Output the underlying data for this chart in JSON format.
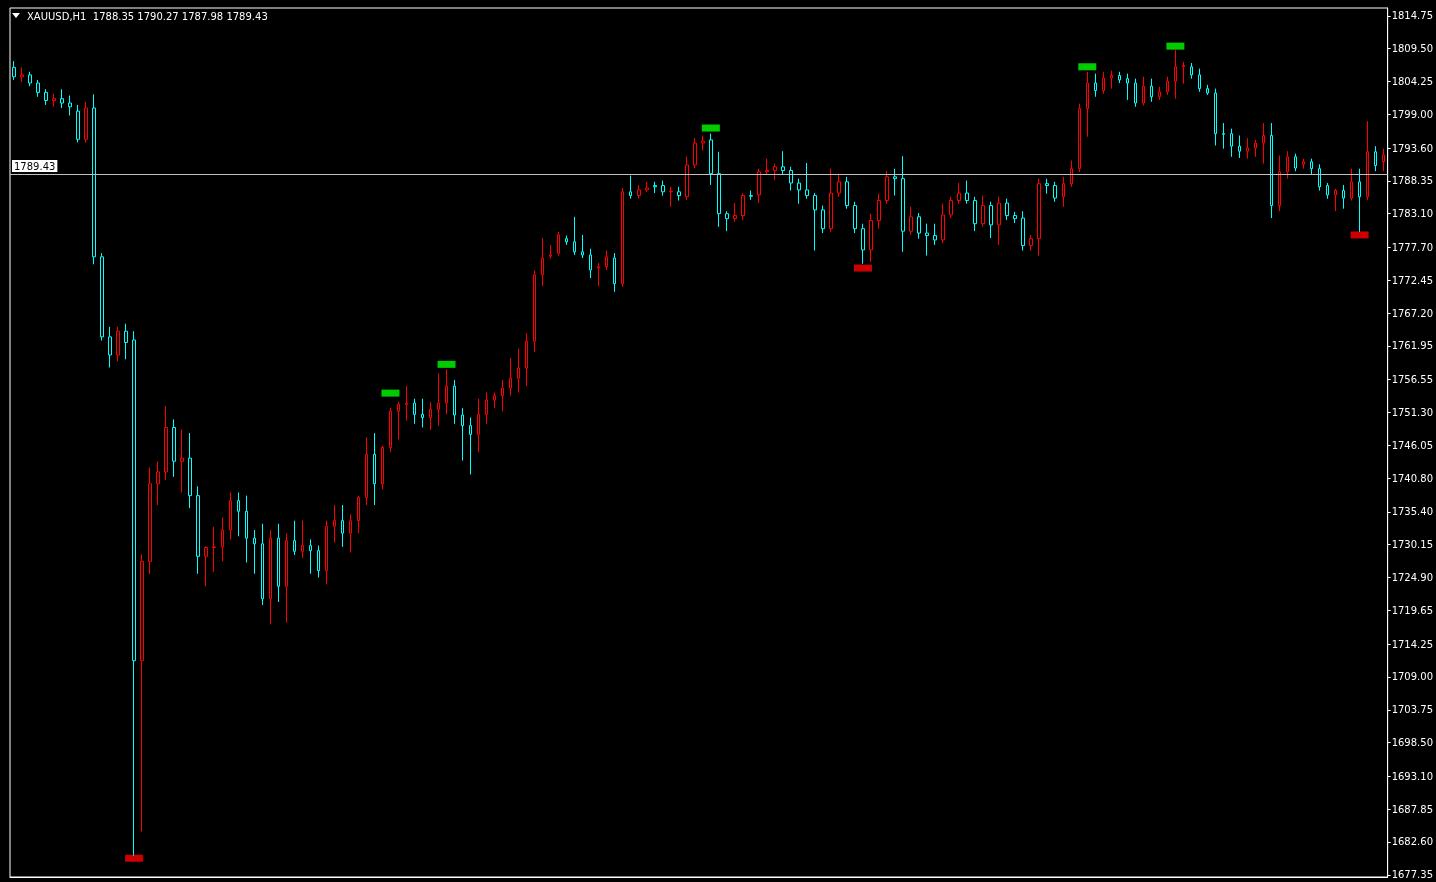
{
  "chart_data": {
    "type": "candlestick",
    "title": "XAUUSD,H1  1788.35 1790.27 1787.98 1789.43",
    "categories": [
      null,
      null,
      null,
      null,
      null,
      null,
      null,
      null,
      null,
      null,
      null,
      null,
      null,
      null,
      null,
      null,
      null,
      null,
      null,
      null,
      null,
      null,
      null,
      null,
      null,
      null,
      null,
      null,
      null,
      null,
      null,
      null,
      null,
      null,
      null,
      null,
      null,
      null,
      null,
      null,
      null,
      null,
      null,
      null,
      null,
      null,
      null,
      null,
      null,
      null,
      null,
      null,
      null,
      null,
      null,
      null,
      null,
      null,
      null,
      null,
      null,
      null,
      null,
      null,
      null,
      null,
      null,
      null,
      null,
      null,
      null,
      null,
      null,
      null,
      null,
      null,
      null,
      null,
      null,
      null,
      null,
      null,
      null,
      null,
      null,
      null,
      null,
      null,
      null,
      null,
      null,
      null,
      null,
      null,
      null,
      null,
      null,
      null,
      null,
      null,
      null,
      null,
      null,
      null,
      null,
      null,
      null,
      null,
      null,
      null,
      null,
      null,
      null,
      null,
      null,
      null,
      null,
      null,
      null,
      null,
      null,
      null,
      null,
      null,
      null,
      null,
      null,
      null,
      null,
      null,
      null,
      null,
      null,
      null,
      null,
      null,
      null,
      null,
      null,
      null,
      null,
      null,
      null,
      null,
      null,
      null,
      null,
      null,
      null,
      null,
      null,
      null,
      null,
      null,
      null,
      null,
      null,
      null,
      null,
      null,
      null,
      null,
      null,
      null,
      null,
      null,
      null,
      null,
      null,
      null,
      null,
      null
    ],
    "ohlc": [
      [
        1806.5,
        1807.5,
        1804.5,
        1805.0
      ],
      [
        1805.0,
        1806.5,
        1804.2,
        1805.3
      ],
      [
        1805.3,
        1805.8,
        1803.5,
        1804.0
      ],
      [
        1804.0,
        1804.5,
        1801.8,
        1802.5
      ],
      [
        1802.5,
        1803.0,
        1800.5,
        1801.2
      ],
      [
        1801.2,
        1802.3,
        1800.2,
        1801.5
      ],
      [
        1801.5,
        1803.0,
        1800.0,
        1800.8
      ],
      [
        1800.8,
        1802.0,
        1798.8,
        1800.2
      ],
      [
        1799.5,
        1800.5,
        1794.5,
        1795.0
      ],
      [
        1795.0,
        1801.0,
        1794.5,
        1800.0
      ],
      [
        1800.0,
        1802.2,
        1775.0,
        1776.2
      ],
      [
        1776.2,
        1776.8,
        1762.8,
        1763.4
      ],
      [
        1763.4,
        1765.0,
        1758.5,
        1760.5
      ],
      [
        1760.5,
        1765.0,
        1759.5,
        1764.3
      ],
      [
        1764.3,
        1765.5,
        1759.8,
        1762.5
      ],
      [
        1762.9,
        1764.3,
        1680.4,
        1711.6
      ],
      [
        1711.6,
        1728.6,
        1684.3,
        1727.5
      ],
      [
        1727.5,
        1742.5,
        1725.5,
        1739.9
      ],
      [
        1739.9,
        1743.5,
        1736.5,
        1741.8
      ],
      [
        1741.8,
        1752.3,
        1740.5,
        1748.9
      ],
      [
        1748.9,
        1750.2,
        1741.0,
        1743.5
      ],
      [
        1743.5,
        1748.6,
        1738.5,
        1744.0
      ],
      [
        1744.0,
        1748.0,
        1736.0,
        1738.0
      ],
      [
        1738.0,
        1739.5,
        1725.5,
        1728.3
      ],
      [
        1728.3,
        1729.9,
        1723.5,
        1729.7
      ],
      [
        1729.7,
        1733.0,
        1725.8,
        1729.8
      ],
      [
        1729.8,
        1734.5,
        1727.5,
        1732.5
      ],
      [
        1732.5,
        1738.5,
        1731.0,
        1737.2
      ],
      [
        1737.2,
        1738.5,
        1731.5,
        1735.5
      ],
      [
        1735.5,
        1738.0,
        1727.3,
        1731.2
      ],
      [
        1731.2,
        1732.5,
        1725.5,
        1730.3
      ],
      [
        1730.3,
        1733.5,
        1720.5,
        1721.5
      ],
      [
        1721.5,
        1732.5,
        1717.4,
        1731.2
      ],
      [
        1731.2,
        1733.5,
        1721.0,
        1723.5
      ],
      [
        1723.5,
        1732.0,
        1717.7,
        1730.8
      ],
      [
        1730.8,
        1734.0,
        1728.5,
        1729.1
      ],
      [
        1729.1,
        1734.0,
        1728.0,
        1730.0
      ],
      [
        1730.0,
        1731.0,
        1725.5,
        1729.2
      ],
      [
        1729.2,
        1730.0,
        1724.9,
        1726.0
      ],
      [
        1726.0,
        1734.0,
        1723.8,
        1733.1
      ],
      [
        1733.1,
        1736.5,
        1730.5,
        1734.0
      ],
      [
        1734.0,
        1736.5,
        1729.8,
        1732.0
      ],
      [
        1732.0,
        1735.0,
        1728.9,
        1734.0
      ],
      [
        1734.0,
        1738.0,
        1732.0,
        1737.7
      ],
      [
        1737.7,
        1747.3,
        1736.5,
        1744.6
      ],
      [
        1744.6,
        1748.0,
        1736.5,
        1739.9
      ],
      [
        1739.9,
        1746.0,
        1739.0,
        1745.7
      ],
      [
        1745.7,
        1752.0,
        1745.0,
        1751.5
      ],
      [
        1751.5,
        1753.0,
        1747.0,
        1752.6
      ],
      [
        1752.6,
        1755.5,
        1750.0,
        1752.8
      ],
      [
        1752.8,
        1753.5,
        1749.5,
        1751.0
      ],
      [
        1751.0,
        1753.5,
        1748.9,
        1750.5
      ],
      [
        1750.5,
        1753.0,
        1748.5,
        1751.8
      ],
      [
        1751.8,
        1757.6,
        1749.2,
        1752.8
      ],
      [
        1752.8,
        1758.2,
        1751.0,
        1755.5
      ],
      [
        1755.5,
        1756.5,
        1749.5,
        1750.9
      ],
      [
        1750.9,
        1752.0,
        1743.6,
        1749.2
      ],
      [
        1749.2,
        1750.5,
        1741.4,
        1747.8
      ],
      [
        1747.8,
        1753.5,
        1745.0,
        1751.0
      ],
      [
        1751.0,
        1754.5,
        1749.5,
        1753.3
      ],
      [
        1753.3,
        1754.5,
        1752.0,
        1754.0
      ],
      [
        1754.0,
        1756.5,
        1751.5,
        1755.2
      ],
      [
        1755.2,
        1760.0,
        1754.0,
        1756.8
      ],
      [
        1756.8,
        1761.5,
        1754.5,
        1758.4
      ],
      [
        1758.4,
        1764.0,
        1755.5,
        1762.7
      ],
      [
        1762.7,
        1774.0,
        1761.0,
        1773.3
      ],
      [
        1773.3,
        1779.2,
        1771.5,
        1776.0
      ],
      [
        1776.3,
        1778.1,
        1775.9,
        1776.5
      ],
      [
        1776.8,
        1780.2,
        1776.4,
        1779.7
      ],
      [
        1779.1,
        1779.6,
        1778.1,
        1778.6
      ],
      [
        1778.6,
        1782.6,
        1776.5,
        1777.0
      ],
      [
        1777.0,
        1779.7,
        1776.0,
        1776.5
      ],
      [
        1776.5,
        1777.5,
        1772.8,
        1774.1
      ],
      [
        1774.4,
        1775.2,
        1771.5,
        1774.6
      ],
      [
        1774.6,
        1777.2,
        1774.1,
        1776.2
      ],
      [
        1776.0,
        1776.8,
        1770.6,
        1771.9
      ],
      [
        1771.9,
        1787.2,
        1771.4,
        1786.6
      ],
      [
        1786.6,
        1789.2,
        1785.5,
        1786.0
      ],
      [
        1786.0,
        1787.7,
        1785.5,
        1786.9
      ],
      [
        1786.9,
        1788.2,
        1786.6,
        1787.2
      ],
      [
        1787.6,
        1788.2,
        1786.4,
        1787.4
      ],
      [
        1787.6,
        1788.4,
        1786.0,
        1786.6
      ],
      [
        1786.6,
        1787.4,
        1784.2,
        1786.7
      ],
      [
        1786.6,
        1787.4,
        1785.2,
        1786.0
      ],
      [
        1785.8,
        1792.2,
        1785.3,
        1790.9
      ],
      [
        1790.9,
        1795.2,
        1790.4,
        1794.4
      ],
      [
        1794.4,
        1795.6,
        1793.2,
        1794.7
      ],
      [
        1794.9,
        1795.9,
        1787.7,
        1789.5
      ],
      [
        1789.5,
        1793.0,
        1781.0,
        1783.1
      ],
      [
        1783.1,
        1783.5,
        1780.3,
        1782.3
      ],
      [
        1782.3,
        1784.8,
        1781.8,
        1782.8
      ],
      [
        1782.8,
        1786.4,
        1782.1,
        1786.0
      ],
      [
        1786.0,
        1786.8,
        1785.3,
        1785.9
      ],
      [
        1786.1,
        1790.3,
        1784.8,
        1789.8
      ],
      [
        1789.8,
        1791.9,
        1789.3,
        1790.0
      ],
      [
        1790.0,
        1791.1,
        1788.5,
        1790.6
      ],
      [
        1790.6,
        1793.1,
        1789.3,
        1790.0
      ],
      [
        1790.0,
        1790.6,
        1786.8,
        1788.0
      ],
      [
        1788.0,
        1788.7,
        1784.7,
        1786.9
      ],
      [
        1786.9,
        1791.2,
        1785.5,
        1786.0
      ],
      [
        1786.0,
        1786.4,
        1777.2,
        1783.7
      ],
      [
        1783.7,
        1784.4,
        1780.0,
        1780.7
      ],
      [
        1780.7,
        1790.3,
        1780.2,
        1786.4
      ],
      [
        1786.4,
        1789.5,
        1785.8,
        1788.2
      ],
      [
        1788.2,
        1789.0,
        1783.9,
        1784.4
      ],
      [
        1784.4,
        1785.0,
        1780.0,
        1780.7
      ],
      [
        1780.7,
        1781.5,
        1775.1,
        1777.3
      ],
      [
        1777.3,
        1783.1,
        1775.4,
        1782.0
      ],
      [
        1782.0,
        1786.3,
        1780.7,
        1785.2
      ],
      [
        1785.2,
        1789.9,
        1784.7,
        1789.0
      ],
      [
        1789.0,
        1790.3,
        1786.0,
        1788.7
      ],
      [
        1788.7,
        1792.3,
        1777.0,
        1780.3
      ],
      [
        1780.3,
        1784.2,
        1779.7,
        1782.6
      ],
      [
        1782.6,
        1783.2,
        1779.1,
        1780.0
      ],
      [
        1780.0,
        1781.5,
        1776.4,
        1779.6
      ],
      [
        1779.6,
        1781.5,
        1778.1,
        1778.9
      ],
      [
        1778.9,
        1784.7,
        1778.4,
        1782.9
      ],
      [
        1782.9,
        1785.8,
        1782.4,
        1785.2
      ],
      [
        1785.2,
        1788.0,
        1784.7,
        1786.4
      ],
      [
        1786.4,
        1788.4,
        1784.7,
        1785.2
      ],
      [
        1785.2,
        1785.8,
        1780.3,
        1781.5
      ],
      [
        1781.5,
        1786.0,
        1781.0,
        1784.4
      ],
      [
        1784.4,
        1785.0,
        1779.2,
        1781.3
      ],
      [
        1781.3,
        1785.8,
        1778.1,
        1784.8
      ],
      [
        1784.8,
        1785.5,
        1782.1,
        1782.8
      ],
      [
        1782.8,
        1783.4,
        1781.6,
        1782.3
      ],
      [
        1782.4,
        1783.5,
        1777.2,
        1778.0
      ],
      [
        1778.0,
        1779.7,
        1777.2,
        1779.1
      ],
      [
        1779.1,
        1788.7,
        1776.4,
        1787.9
      ],
      [
        1787.9,
        1788.7,
        1786.3,
        1787.6
      ],
      [
        1787.6,
        1788.2,
        1785.0,
        1785.6
      ],
      [
        1785.8,
        1789.0,
        1784.2,
        1787.9
      ],
      [
        1787.9,
        1791.6,
        1787.4,
        1790.3
      ],
      [
        1790.3,
        1800.7,
        1789.8,
        1799.9
      ],
      [
        1799.9,
        1805.8,
        1795.4,
        1804.0
      ],
      [
        1804.0,
        1805.5,
        1801.8,
        1802.8
      ],
      [
        1802.8,
        1805.8,
        1802.3,
        1804.8
      ],
      [
        1804.8,
        1806.0,
        1803.1,
        1805.2
      ],
      [
        1805.2,
        1805.8,
        1804.0,
        1804.5
      ],
      [
        1804.7,
        1805.5,
        1801.3,
        1804.0
      ],
      [
        1804.0,
        1804.7,
        1800.2,
        1800.8
      ],
      [
        1800.8,
        1805.0,
        1800.4,
        1803.5
      ],
      [
        1803.5,
        1804.7,
        1801.0,
        1801.8
      ],
      [
        1801.8,
        1803.4,
        1801.3,
        1802.6
      ],
      [
        1802.6,
        1805.0,
        1802.1,
        1804.3
      ],
      [
        1804.3,
        1809.3,
        1801.5,
        1806.6
      ],
      [
        1806.6,
        1807.4,
        1803.9,
        1806.8
      ],
      [
        1806.6,
        1807.2,
        1804.7,
        1805.3
      ],
      [
        1805.3,
        1806.3,
        1802.6,
        1803.1
      ],
      [
        1803.1,
        1803.7,
        1802.1,
        1802.4
      ],
      [
        1802.4,
        1803.1,
        1794.0,
        1795.9
      ],
      [
        1795.9,
        1797.6,
        1793.5,
        1795.8
      ],
      [
        1795.9,
        1796.7,
        1792.2,
        1793.9
      ],
      [
        1793.9,
        1795.6,
        1792.0,
        1793.1
      ],
      [
        1793.1,
        1795.2,
        1791.9,
        1793.6
      ],
      [
        1793.6,
        1794.9,
        1792.2,
        1794.4
      ],
      [
        1794.4,
        1797.6,
        1791.1,
        1795.6
      ],
      [
        1795.6,
        1797.6,
        1782.4,
        1784.4
      ],
      [
        1784.4,
        1792.4,
        1783.5,
        1789.8
      ],
      [
        1789.8,
        1793.1,
        1788.7,
        1792.2
      ],
      [
        1792.2,
        1792.7,
        1789.9,
        1790.4
      ],
      [
        1791.0,
        1791.9,
        1790.3,
        1791.4
      ],
      [
        1791.4,
        1791.9,
        1789.3,
        1790.3
      ],
      [
        1790.3,
        1791.0,
        1786.8,
        1787.4
      ],
      [
        1787.6,
        1788.0,
        1785.5,
        1786.1
      ],
      [
        1786.1,
        1787.1,
        1783.5,
        1786.8
      ],
      [
        1786.8,
        1787.7,
        1783.9,
        1785.6
      ],
      [
        1785.6,
        1790.3,
        1785.2,
        1788.2
      ],
      [
        1788.2,
        1790.3,
        1780.2,
        1785.8
      ],
      [
        1785.8,
        1797.9,
        1785.3,
        1793.0
      ],
      [
        1793.0,
        1793.9,
        1789.9,
        1790.8
      ],
      [
        1791.4,
        1793.5,
        1789.9,
        1792.5
      ]
    ],
    "colors": [
      "#00ffff",
      "#ff0000",
      "#00ffff",
      "#00ffff",
      "#00ffff",
      "#ff0000",
      "#00ffff",
      "#00ffff",
      "#00ffff",
      "#ff0000",
      "#00ffff",
      "#00ffff",
      "#00ffff",
      "#ff0000",
      "#00ffff",
      "#00ffff",
      "#ff0000",
      "#ff0000",
      "#ff0000",
      "#ff0000",
      "#00ffff",
      "#ff0000",
      "#00ffff",
      "#00ffff",
      "#ff0000",
      "#ff0000",
      "#ff0000",
      "#ff0000",
      "#00ffff",
      "#00ffff",
      "#00ffff",
      "#00ffff",
      "#ff0000",
      "#00ffff",
      "#ff0000",
      "#00ffff",
      "#ff0000",
      "#00ffff",
      "#00ffff",
      "#ff0000",
      "#ff0000",
      "#00ffff",
      "#ff0000",
      "#ff0000",
      "#ff0000",
      "#00ffff",
      "#ff0000",
      "#ff0000",
      "#ff0000",
      "#ff0000",
      "#00ffff",
      "#00ffff",
      "#ff0000",
      "#ff0000",
      "#ff0000",
      "#00ffff",
      "#00ffff",
      "#00ffff",
      "#ff0000",
      "#ff0000",
      "#ff0000",
      "#ff0000",
      "#ff0000",
      "#ff0000",
      "#ff0000",
      "#ff0000",
      "#ff0000",
      "#ff0000",
      "#ff0000",
      "#00ffff",
      "#00ffff",
      "#00ffff",
      "#00ffff",
      "#ff0000",
      "#ff0000",
      "#00ffff",
      "#ff0000",
      "#00ffff",
      "#ff0000",
      "#ff0000",
      "#00ffff",
      "#00ffff",
      "#ff0000",
      "#00ffff",
      "#ff0000",
      "#ff0000",
      "#ff0000",
      "#00ffff",
      "#00ffff",
      "#00ffff",
      "#ff0000",
      "#ff0000",
      "#00ffff",
      "#ff0000",
      "#ff0000",
      "#ff0000",
      "#00ffff",
      "#00ffff",
      "#00ffff",
      "#00ffff",
      "#00ffff",
      "#00ffff",
      "#ff0000",
      "#ff0000",
      "#00ffff",
      "#00ffff",
      "#00ffff",
      "#ff0000",
      "#ff0000",
      "#ff0000",
      "#00ffff",
      "#00ffff",
      "#ff0000",
      "#00ffff",
      "#00ffff",
      "#00ffff",
      "#ff0000",
      "#ff0000",
      "#ff0000",
      "#00ffff",
      "#00ffff",
      "#ff0000",
      "#00ffff",
      "#ff0000",
      "#00ffff",
      "#00ffff",
      "#00ffff",
      "#ff0000",
      "#ff0000",
      "#00ffff",
      "#00ffff",
      "#ff0000",
      "#ff0000",
      "#ff0000",
      "#ff0000",
      "#00ffff",
      "#ff0000",
      "#ff0000",
      "#00ffff",
      "#00ffff",
      "#00ffff",
      "#ff0000",
      "#00ffff",
      "#ff0000",
      "#ff0000",
      "#ff0000",
      "#ff0000",
      "#00ffff",
      "#00ffff",
      "#00ffff",
      "#00ffff",
      "#00ffff",
      "#00ffff",
      "#00ffff",
      "#ff0000",
      "#ff0000",
      "#ff0000",
      "#00ffff",
      "#ff0000",
      "#ff0000",
      "#00ffff",
      "#ff0000",
      "#00ffff",
      "#00ffff",
      "#00ffff",
      "#ff0000",
      "#00ffff",
      "#ff0000",
      "#00ffff",
      "#ff0000",
      "#00ffff",
      "#ff0000"
    ],
    "ylim": [
      1677.0,
      1816.0
    ],
    "yticks": [
      1814.75,
      {
        "value": 1809.5,
        "label": "1809.50"
      },
      1804.25,
      {
        "value": 1799,
        "label": "1799.00"
      },
      {
        "value": 1793.6,
        "label": "1793.60"
      },
      1788.35,
      {
        "value": 1783.1,
        "label": "1783.10"
      },
      {
        "value": 1777.7,
        "label": "1777.70"
      },
      1772.45,
      {
        "value": 1767.2,
        "label": "1767.20"
      },
      1761.95,
      1756.55,
      {
        "value": 1751.3,
        "label": "1751.30"
      },
      1746.05,
      {
        "value": 1740.8,
        "label": "1740.80"
      },
      {
        "value": 1735.4,
        "label": "1735.40"
      },
      1730.15,
      {
        "value": 1724.9,
        "label": "1724.90"
      },
      1719.65,
      1714.25,
      {
        "value": 1709,
        "label": "1709.00"
      },
      1703.75,
      {
        "value": 1698.5,
        "label": "1698.50"
      },
      {
        "value": 1693.1,
        "label": "1693.10"
      },
      1687.85,
      {
        "value": 1682.6,
        "label": "1682.60"
      },
      1677.35
    ],
    "tick_labels": "y",
    "ref_lines": [
      {
        "axis": "y",
        "value": 1789.43,
        "label": "1789.43",
        "color": "#c0c0c0"
      }
    ],
    "series": [
      {
        "type": "scatter",
        "color": "#00ff00",
        "marker": "square",
        "values": [
          null,
          null,
          null,
          null,
          null,
          null,
          null,
          null,
          null,
          null,
          null,
          null,
          null,
          null,
          null,
          null,
          null,
          null,
          null,
          null,
          null,
          null,
          null,
          null,
          null,
          null,
          null,
          null,
          null,
          null,
          null,
          null,
          null,
          null,
          null,
          null,
          null,
          null,
          null,
          null,
          null,
          null,
          null,
          null,
          null,
          null,
          null,
          1754.4,
          null,
          null,
          null,
          null,
          null,
          null,
          1759.0,
          null,
          null,
          null,
          null,
          null,
          null,
          null,
          null,
          null,
          null,
          null,
          null,
          null,
          null,
          null,
          null,
          null,
          null,
          null,
          null,
          null,
          null,
          null,
          null,
          null,
          null,
          null,
          null,
          null,
          null,
          null,
          null,
          1796.8,
          null,
          null,
          null,
          null,
          null,
          null,
          null,
          null,
          null,
          null,
          null,
          null,
          null,
          null,
          null,
          null,
          null,
          null,
          null,
          null,
          null,
          null,
          null,
          null,
          null,
          null,
          null,
          null,
          null,
          null,
          null,
          null,
          null,
          null,
          null,
          null,
          null,
          null,
          null,
          null,
          null,
          null,
          null,
          null,
          null,
          null,
          1806.6,
          null,
          null,
          null,
          null,
          null,
          null,
          null,
          null,
          null,
          null,
          1809.9,
          null,
          null,
          null,
          null,
          null,
          null,
          null,
          null,
          null,
          null,
          null,
          null,
          null,
          null,
          null,
          null,
          null,
          null,
          null,
          null,
          null,
          null,
          null,
          null,
          null,
          null
        ]
      },
      {
        "type": "scatter",
        "color": "#ff0000",
        "marker": "square",
        "values": [
          null,
          null,
          null,
          null,
          null,
          null,
          null,
          null,
          null,
          null,
          null,
          null,
          null,
          null,
          null,
          1680.0,
          null,
          null,
          null,
          null,
          null,
          null,
          null,
          null,
          null,
          null,
          null,
          null,
          null,
          null,
          null,
          null,
          null,
          null,
          null,
          null,
          null,
          null,
          null,
          null,
          null,
          null,
          null,
          null,
          null,
          null,
          null,
          null,
          null,
          null,
          null,
          null,
          null,
          null,
          null,
          null,
          null,
          null,
          null,
          null,
          null,
          null,
          null,
          null,
          null,
          null,
          null,
          null,
          null,
          null,
          null,
          null,
          null,
          null,
          null,
          null,
          null,
          null,
          null,
          null,
          null,
          null,
          null,
          null,
          null,
          null,
          null,
          null,
          null,
          null,
          null,
          null,
          null,
          null,
          null,
          null,
          null,
          null,
          null,
          null,
          null,
          null,
          null,
          null,
          null,
          null,
          1774.4,
          null,
          null,
          null,
          null,
          null,
          null,
          null,
          null,
          null,
          null,
          null,
          null,
          null,
          null,
          null,
          null,
          null,
          null,
          null,
          null,
          null,
          null,
          null,
          null,
          null,
          null,
          null,
          null,
          null,
          null,
          null,
          null,
          null,
          null,
          null,
          null,
          null,
          null,
          null,
          null,
          null,
          null,
          null,
          null,
          null,
          null,
          null,
          null,
          null,
          null,
          null,
          null,
          null,
          null,
          null,
          null,
          null,
          null,
          null,
          null,
          null,
          1779.7,
          null,
          null,
          null
        ]
      }
    ]
  }
}
